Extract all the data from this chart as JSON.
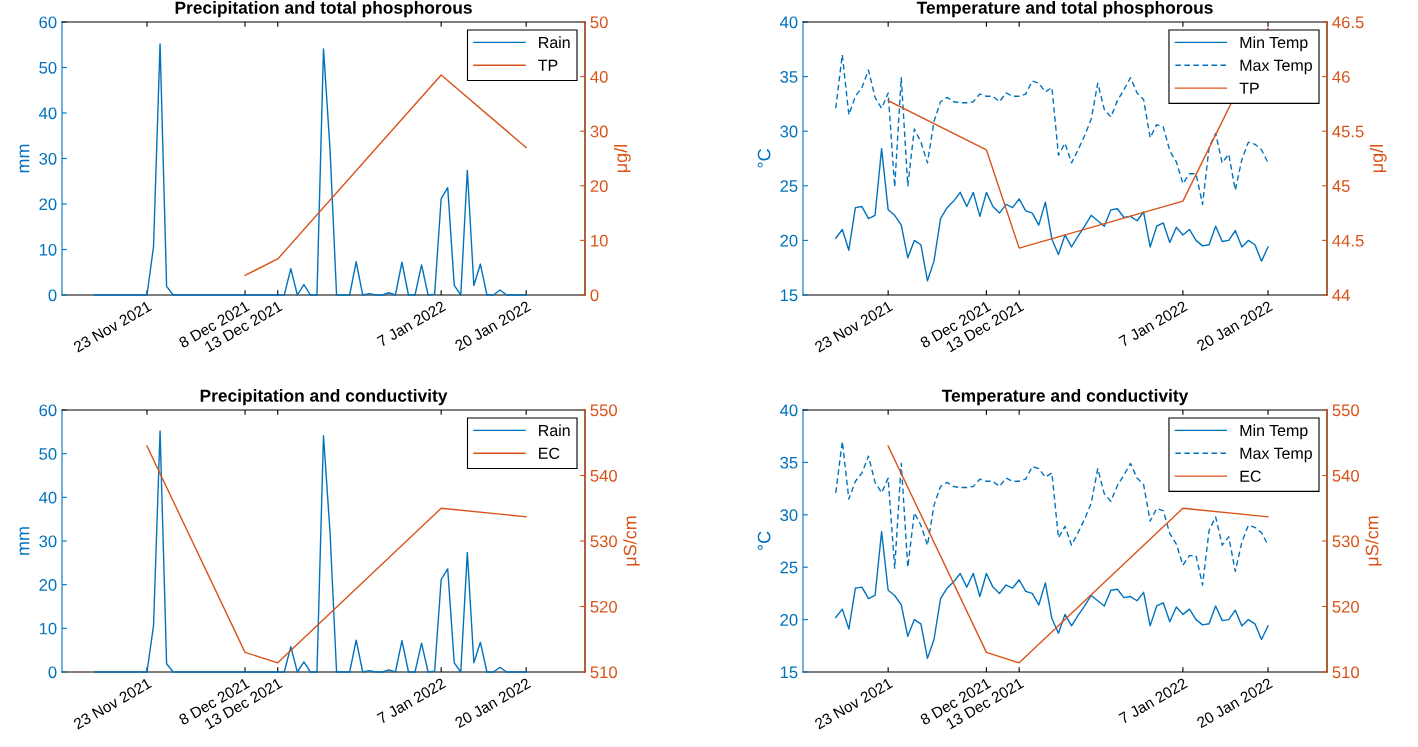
{
  "chart_data": [
    {
      "type": "line",
      "title": "Precipitation and total phosphorous",
      "ylabel": "mm",
      "y2label": "μg/l",
      "x": [
        "2021-11-15",
        "2021-11-16",
        "2021-11-17",
        "2021-11-18",
        "2021-11-19",
        "2021-11-20",
        "2021-11-21",
        "2021-11-22",
        "2021-11-23",
        "2021-11-24",
        "2021-11-25",
        "2021-11-26",
        "2021-11-27",
        "2021-11-28",
        "2021-11-29",
        "2021-11-30",
        "2021-12-01",
        "2021-12-02",
        "2021-12-03",
        "2021-12-04",
        "2021-12-05",
        "2021-12-06",
        "2021-12-07",
        "2021-12-08",
        "2021-12-09",
        "2021-12-10",
        "2021-12-11",
        "2021-12-12",
        "2021-12-13",
        "2021-12-14",
        "2021-12-15",
        "2021-12-16",
        "2021-12-17",
        "2021-12-18",
        "2021-12-19",
        "2021-12-20",
        "2021-12-21",
        "2021-12-22",
        "2021-12-23",
        "2021-12-24",
        "2021-12-25",
        "2021-12-26",
        "2021-12-27",
        "2021-12-28",
        "2021-12-29",
        "2021-12-30",
        "2021-12-31",
        "2022-01-01",
        "2022-01-02",
        "2022-01-03",
        "2022-01-04",
        "2022-01-05",
        "2022-01-06",
        "2022-01-07",
        "2022-01-08",
        "2022-01-09",
        "2022-01-10",
        "2022-01-11",
        "2022-01-12",
        "2022-01-13",
        "2022-01-14",
        "2022-01-15",
        "2022-01-16",
        "2022-01-17",
        "2022-01-18",
        "2022-01-19",
        "2022-01-20"
      ],
      "xlim": [
        "2021-11-10",
        "2022-01-29"
      ],
      "xticks": [
        {
          "value": "2021-11-23",
          "label": "23 Nov 2021"
        },
        {
          "value": "2021-12-08",
          "label": "8 Dec 2021"
        },
        {
          "value": "2021-12-13",
          "label": "13 Dec 2021"
        },
        {
          "value": "2022-01-07",
          "label": "7 Jan 2022"
        },
        {
          "value": "2022-01-20",
          "label": "20 Jan 2022"
        }
      ],
      "ylim": [
        0,
        60
      ],
      "yticks": [
        0,
        10,
        20,
        30,
        40,
        50,
        60
      ],
      "y2lim": [
        0,
        50
      ],
      "y2ticks": [
        0,
        10,
        20,
        30,
        40,
        50
      ],
      "legend": "top right",
      "grid": false,
      "series": [
        {
          "name": "Rain",
          "color": "#0072bd",
          "line_style": "solid",
          "values": [
            0,
            0,
            0,
            0,
            0,
            0,
            0,
            0,
            0,
            10.6,
            55.2,
            1.9,
            0,
            0,
            0,
            0,
            0,
            0,
            0,
            0,
            0,
            0,
            0,
            0,
            0,
            0,
            0,
            0,
            0,
            0,
            5.8,
            0,
            2.3,
            0,
            0,
            54.1,
            32,
            0,
            0,
            0,
            7.3,
            0,
            0.3,
            0,
            0,
            0.5,
            0,
            7.2,
            0,
            0,
            6.6,
            0,
            0.2,
            21.2,
            23.6,
            2.1,
            0,
            27.4,
            2.1,
            6.8,
            0,
            0,
            1.1,
            0,
            0,
            0,
            0
          ]
        },
        {
          "name": "TP",
          "color": "#d95319",
          "line_style": "solid",
          "axis": "y2",
          "x": [
            "2021-12-08",
            "2021-12-13",
            "2022-01-07",
            "2022-01-20"
          ],
          "values": [
            3.6,
            6.6,
            40.3,
            27.0
          ]
        }
      ]
    },
    {
      "type": "line",
      "title": "Temperature and total phosphorous",
      "ylabel": "°C",
      "y2label": "μg/l",
      "x": [
        "2021-11-15",
        "2021-11-16",
        "2021-11-17",
        "2021-11-18",
        "2021-11-19",
        "2021-11-20",
        "2021-11-21",
        "2021-11-22",
        "2021-11-23",
        "2021-11-24",
        "2021-11-25",
        "2021-11-26",
        "2021-11-27",
        "2021-11-28",
        "2021-11-29",
        "2021-11-30",
        "2021-12-01",
        "2021-12-02",
        "2021-12-03",
        "2021-12-04",
        "2021-12-05",
        "2021-12-06",
        "2021-12-07",
        "2021-12-08",
        "2021-12-09",
        "2021-12-10",
        "2021-12-11",
        "2021-12-12",
        "2021-12-13",
        "2021-12-14",
        "2021-12-15",
        "2021-12-16",
        "2021-12-17",
        "2021-12-18",
        "2021-12-19",
        "2021-12-20",
        "2021-12-21",
        "2021-12-22",
        "2021-12-23",
        "2021-12-24",
        "2021-12-25",
        "2021-12-26",
        "2021-12-27",
        "2021-12-28",
        "2021-12-29",
        "2021-12-30",
        "2021-12-31",
        "2022-01-01",
        "2022-01-02",
        "2022-01-03",
        "2022-01-04",
        "2022-01-05",
        "2022-01-06",
        "2022-01-07",
        "2022-01-08",
        "2022-01-09",
        "2022-01-10",
        "2022-01-11",
        "2022-01-12",
        "2022-01-13",
        "2022-01-14",
        "2022-01-15",
        "2022-01-16",
        "2022-01-17",
        "2022-01-18",
        "2022-01-19",
        "2022-01-20"
      ],
      "xlim": [
        "2021-11-10",
        "2022-01-29"
      ],
      "xticks": [
        {
          "value": "2021-11-23",
          "label": "23 Nov 2021"
        },
        {
          "value": "2021-12-08",
          "label": "8 Dec 2021"
        },
        {
          "value": "2021-12-13",
          "label": "13 Dec 2021"
        },
        {
          "value": "2022-01-07",
          "label": "7 Jan 2022"
        },
        {
          "value": "2022-01-20",
          "label": "20 Jan 2022"
        }
      ],
      "ylim": [
        15,
        40
      ],
      "yticks": [
        15,
        20,
        25,
        30,
        35,
        40
      ],
      "y2lim": [
        44,
        46.5
      ],
      "y2ticks": [
        44,
        44.5,
        45,
        45.5,
        46,
        46.5
      ],
      "legend": "top right",
      "grid": false,
      "series": [
        {
          "name": "Min Temp",
          "color": "#0072bd",
          "line_style": "solid",
          "values": [
            20.2,
            21.0,
            19.1,
            23.0,
            23.1,
            22.0,
            22.3,
            28.4,
            22.8,
            22.3,
            21.4,
            18.4,
            20.0,
            19.6,
            16.3,
            18.1,
            22.0,
            23.0,
            23.6,
            24.4,
            23.1,
            24.4,
            22.2,
            24.4,
            23.1,
            22.5,
            23.3,
            23.0,
            23.8,
            22.7,
            22.5,
            21.4,
            23.5,
            20.1,
            18.7,
            20.5,
            19.4,
            20.4,
            21.3,
            22.3,
            21.8,
            21.3,
            22.8,
            22.9,
            22.1,
            22.2,
            21.8,
            22.6,
            19.4,
            21.3,
            21.6,
            19.8,
            21.2,
            20.5,
            21.0,
            20.0,
            19.5,
            19.6,
            21.3,
            19.9,
            20.0,
            20.9,
            19.4,
            20.0,
            19.6,
            18.1,
            19.4
          ]
        },
        {
          "name": "Max Temp",
          "color": "#0072bd",
          "line_style": "dashed",
          "values": [
            32.1,
            37.0,
            31.5,
            33.2,
            34.0,
            35.6,
            33.1,
            32.1,
            33.5,
            24.9,
            34.9,
            25.0,
            30.2,
            29.0,
            27.1,
            30.9,
            32.7,
            33.1,
            32.7,
            32.6,
            32.6,
            32.7,
            33.4,
            33.2,
            33.2,
            32.7,
            33.5,
            33.2,
            33.2,
            33.4,
            34.6,
            34.4,
            33.6,
            34.0,
            27.8,
            28.9,
            27.1,
            28.3,
            29.6,
            31.1,
            34.4,
            32.0,
            31.3,
            32.8,
            33.8,
            34.9,
            33.5,
            32.9,
            29.4,
            30.6,
            30.4,
            28.2,
            27.2,
            25.2,
            26.1,
            26.1,
            23.3,
            28.5,
            29.8,
            27.1,
            27.9,
            24.6,
            27.4,
            29.0,
            28.8,
            28.3,
            27.1
          ]
        },
        {
          "name": "TP",
          "color": "#d95319",
          "line_style": "solid",
          "axis": "y2",
          "x": [
            "2021-11-23",
            "2021-12-08",
            "2021-12-13",
            "2022-01-07",
            "2022-01-20"
          ],
          "values": [
            45.78,
            45.33,
            44.43,
            44.86,
            46.44
          ]
        }
      ]
    },
    {
      "type": "line",
      "title": "Precipitation and conductivity",
      "ylabel": "mm",
      "y2label": "μS/cm",
      "x": [
        "2021-11-15",
        "2021-11-16",
        "2021-11-17",
        "2021-11-18",
        "2021-11-19",
        "2021-11-20",
        "2021-11-21",
        "2021-11-22",
        "2021-11-23",
        "2021-11-24",
        "2021-11-25",
        "2021-11-26",
        "2021-11-27",
        "2021-11-28",
        "2021-11-29",
        "2021-11-30",
        "2021-12-01",
        "2021-12-02",
        "2021-12-03",
        "2021-12-04",
        "2021-12-05",
        "2021-12-06",
        "2021-12-07",
        "2021-12-08",
        "2021-12-09",
        "2021-12-10",
        "2021-12-11",
        "2021-12-12",
        "2021-12-13",
        "2021-12-14",
        "2021-12-15",
        "2021-12-16",
        "2021-12-17",
        "2021-12-18",
        "2021-12-19",
        "2021-12-20",
        "2021-12-21",
        "2021-12-22",
        "2021-12-23",
        "2021-12-24",
        "2021-12-25",
        "2021-12-26",
        "2021-12-27",
        "2021-12-28",
        "2021-12-29",
        "2021-12-30",
        "2021-12-31",
        "2022-01-01",
        "2022-01-02",
        "2022-01-03",
        "2022-01-04",
        "2022-01-05",
        "2022-01-06",
        "2022-01-07",
        "2022-01-08",
        "2022-01-09",
        "2022-01-10",
        "2022-01-11",
        "2022-01-12",
        "2022-01-13",
        "2022-01-14",
        "2022-01-15",
        "2022-01-16",
        "2022-01-17",
        "2022-01-18",
        "2022-01-19",
        "2022-01-20"
      ],
      "xlim": [
        "2021-11-10",
        "2022-01-29"
      ],
      "xticks": [
        {
          "value": "2021-11-23",
          "label": "23 Nov 2021"
        },
        {
          "value": "2021-12-08",
          "label": "8 Dec 2021"
        },
        {
          "value": "2021-12-13",
          "label": "13 Dec 2021"
        },
        {
          "value": "2022-01-07",
          "label": "7 Jan 2022"
        },
        {
          "value": "2022-01-20",
          "label": "20 Jan 2022"
        }
      ],
      "ylim": [
        0,
        60
      ],
      "yticks": [
        0,
        10,
        20,
        30,
        40,
        50,
        60
      ],
      "y2lim": [
        510,
        550
      ],
      "y2ticks": [
        510,
        520,
        530,
        540,
        550
      ],
      "legend": "top right",
      "grid": false,
      "series": [
        {
          "name": "Rain",
          "color": "#0072bd",
          "line_style": "solid",
          "values": [
            0,
            0,
            0,
            0,
            0,
            0,
            0,
            0,
            0,
            10.6,
            55.2,
            1.9,
            0,
            0,
            0,
            0,
            0,
            0,
            0,
            0,
            0,
            0,
            0,
            0,
            0,
            0,
            0,
            0,
            0,
            0,
            5.8,
            0,
            2.3,
            0,
            0,
            54.1,
            32,
            0,
            0,
            0,
            7.3,
            0,
            0.3,
            0,
            0,
            0.5,
            0,
            7.2,
            0,
            0,
            6.6,
            0,
            0.2,
            21.2,
            23.6,
            2.1,
            0,
            27.4,
            2.1,
            6.8,
            0,
            0,
            1.1,
            0,
            0,
            0,
            0
          ]
        },
        {
          "name": "EC",
          "color": "#d95319",
          "line_style": "solid",
          "axis": "y2",
          "x": [
            "2021-11-23",
            "2021-12-08",
            "2021-12-13",
            "2022-01-07",
            "2022-01-20"
          ],
          "values": [
            544.5,
            513.0,
            511.4,
            535.0,
            533.7
          ]
        }
      ]
    },
    {
      "type": "line",
      "title": "Temperature and conductivity",
      "ylabel": "°C",
      "y2label": "μS/cm",
      "x": [
        "2021-11-15",
        "2021-11-16",
        "2021-11-17",
        "2021-11-18",
        "2021-11-19",
        "2021-11-20",
        "2021-11-21",
        "2021-11-22",
        "2021-11-23",
        "2021-11-24",
        "2021-11-25",
        "2021-11-26",
        "2021-11-27",
        "2021-11-28",
        "2021-11-29",
        "2021-11-30",
        "2021-12-01",
        "2021-12-02",
        "2021-12-03",
        "2021-12-04",
        "2021-12-05",
        "2021-12-06",
        "2021-12-07",
        "2021-12-08",
        "2021-12-09",
        "2021-12-10",
        "2021-12-11",
        "2021-12-12",
        "2021-12-13",
        "2021-12-14",
        "2021-12-15",
        "2021-12-16",
        "2021-12-17",
        "2021-12-18",
        "2021-12-19",
        "2021-12-20",
        "2021-12-21",
        "2021-12-22",
        "2021-12-23",
        "2021-12-24",
        "2021-12-25",
        "2021-12-26",
        "2021-12-27",
        "2021-12-28",
        "2021-12-29",
        "2021-12-30",
        "2021-12-31",
        "2022-01-01",
        "2022-01-02",
        "2022-01-03",
        "2022-01-04",
        "2022-01-05",
        "2022-01-06",
        "2022-01-07",
        "2022-01-08",
        "2022-01-09",
        "2022-01-10",
        "2022-01-11",
        "2022-01-12",
        "2022-01-13",
        "2022-01-14",
        "2022-01-15",
        "2022-01-16",
        "2022-01-17",
        "2022-01-18",
        "2022-01-19",
        "2022-01-20"
      ],
      "xlim": [
        "2021-11-10",
        "2022-01-29"
      ],
      "xticks": [
        {
          "value": "2021-11-23",
          "label": "23 Nov 2021"
        },
        {
          "value": "2021-12-08",
          "label": "8 Dec 2021"
        },
        {
          "value": "2021-12-13",
          "label": "13 Dec 2021"
        },
        {
          "value": "2022-01-07",
          "label": "7 Jan 2022"
        },
        {
          "value": "2022-01-20",
          "label": "20 Jan 2022"
        }
      ],
      "ylim": [
        15,
        40
      ],
      "yticks": [
        15,
        20,
        25,
        30,
        35,
        40
      ],
      "y2lim": [
        510,
        550
      ],
      "y2ticks": [
        510,
        520,
        530,
        540,
        550
      ],
      "legend": "top right",
      "grid": false,
      "series": [
        {
          "name": "Min Temp",
          "color": "#0072bd",
          "line_style": "solid",
          "values": [
            20.2,
            21.0,
            19.1,
            23.0,
            23.1,
            22.0,
            22.3,
            28.4,
            22.8,
            22.3,
            21.4,
            18.4,
            20.0,
            19.6,
            16.3,
            18.1,
            22.0,
            23.0,
            23.6,
            24.4,
            23.1,
            24.4,
            22.2,
            24.4,
            23.1,
            22.5,
            23.3,
            23.0,
            23.8,
            22.7,
            22.5,
            21.4,
            23.5,
            20.1,
            18.7,
            20.5,
            19.4,
            20.4,
            21.3,
            22.3,
            21.8,
            21.3,
            22.8,
            22.9,
            22.1,
            22.2,
            21.8,
            22.6,
            19.4,
            21.3,
            21.6,
            19.8,
            21.2,
            20.5,
            21.0,
            20.0,
            19.5,
            19.6,
            21.3,
            19.9,
            20.0,
            20.9,
            19.4,
            20.0,
            19.6,
            18.1,
            19.4
          ]
        },
        {
          "name": "Max Temp",
          "color": "#0072bd",
          "line_style": "dashed",
          "values": [
            32.1,
            37.0,
            31.5,
            33.2,
            34.0,
            35.6,
            33.1,
            32.1,
            33.5,
            24.9,
            34.9,
            25.0,
            30.2,
            29.0,
            27.1,
            30.9,
            32.7,
            33.1,
            32.7,
            32.6,
            32.6,
            32.7,
            33.4,
            33.2,
            33.2,
            32.7,
            33.5,
            33.2,
            33.2,
            33.4,
            34.6,
            34.4,
            33.6,
            34.0,
            27.8,
            28.9,
            27.1,
            28.3,
            29.6,
            31.1,
            34.4,
            32.0,
            31.3,
            32.8,
            33.8,
            34.9,
            33.5,
            32.9,
            29.4,
            30.6,
            30.4,
            28.2,
            27.2,
            25.2,
            26.1,
            26.1,
            23.3,
            28.5,
            29.8,
            27.1,
            27.9,
            24.6,
            27.4,
            29.0,
            28.8,
            28.3,
            27.1
          ]
        },
        {
          "name": "EC",
          "color": "#d95319",
          "line_style": "solid",
          "axis": "y2",
          "x": [
            "2021-11-23",
            "2021-12-08",
            "2021-12-13",
            "2022-01-07",
            "2022-01-20"
          ],
          "values": [
            544.5,
            513.0,
            511.4,
            535.0,
            533.7
          ]
        }
      ]
    }
  ]
}
